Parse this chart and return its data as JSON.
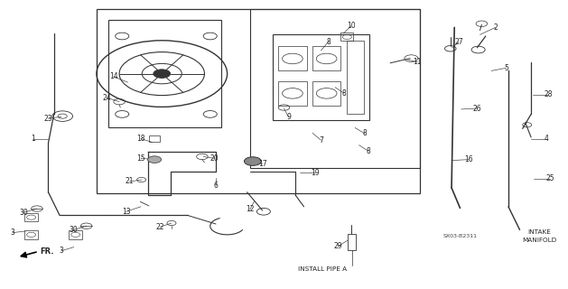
{
  "background_color": "#ffffff",
  "line_color": "#333333",
  "text_color": "#222222",
  "fig_width": 6.29,
  "fig_height": 3.2,
  "dpi": 100,
  "part_positions": {
    "1": {
      "comp": [
        0.085,
        0.52
      ],
      "lbl": [
        0.058,
        0.52
      ]
    },
    "2": {
      "comp": [
        0.845,
        0.88
      ],
      "lbl": [
        0.872,
        0.905
      ]
    },
    "3a": {
      "comp": [
        0.045,
        0.2
      ],
      "lbl": [
        0.022,
        0.195
      ]
    },
    "3b": {
      "comp": [
        0.13,
        0.145
      ],
      "lbl": [
        0.108,
        0.132
      ]
    },
    "4": {
      "comp": [
        0.935,
        0.52
      ],
      "lbl": [
        0.962,
        0.52
      ]
    },
    "5": {
      "comp": [
        0.865,
        0.755
      ],
      "lbl": [
        0.892,
        0.765
      ]
    },
    "6": {
      "comp": [
        0.38,
        0.385
      ],
      "lbl": [
        0.38,
        0.358
      ]
    },
    "7": {
      "comp": [
        0.55,
        0.54
      ],
      "lbl": [
        0.565,
        0.515
      ]
    },
    "8a": {
      "comp": [
        0.565,
        0.825
      ],
      "lbl": [
        0.578,
        0.855
      ]
    },
    "8b": {
      "comp": [
        0.59,
        0.698
      ],
      "lbl": [
        0.605,
        0.678
      ]
    },
    "8c": {
      "comp": [
        0.625,
        0.558
      ],
      "lbl": [
        0.642,
        0.538
      ]
    },
    "8d": {
      "comp": [
        0.632,
        0.498
      ],
      "lbl": [
        0.648,
        0.478
      ]
    },
    "9": {
      "comp": [
        0.5,
        0.625
      ],
      "lbl": [
        0.508,
        0.595
      ]
    },
    "10": {
      "comp": [
        0.605,
        0.885
      ],
      "lbl": [
        0.618,
        0.91
      ]
    },
    "11": {
      "comp": [
        0.715,
        0.795
      ],
      "lbl": [
        0.735,
        0.785
      ]
    },
    "12": {
      "comp": [
        0.448,
        0.305
      ],
      "lbl": [
        0.44,
        0.275
      ]
    },
    "13": {
      "comp": [
        0.248,
        0.285
      ],
      "lbl": [
        0.222,
        0.268
      ]
    },
    "14": {
      "comp": [
        0.225,
        0.715
      ],
      "lbl": [
        0.2,
        0.735
      ]
    },
    "15": {
      "comp": [
        0.272,
        0.448
      ],
      "lbl": [
        0.248,
        0.452
      ]
    },
    "16": {
      "comp": [
        0.795,
        0.445
      ],
      "lbl": [
        0.825,
        0.448
      ]
    },
    "17": {
      "comp": [
        0.447,
        0.442
      ],
      "lbl": [
        0.462,
        0.432
      ]
    },
    "18": {
      "comp": [
        0.268,
        0.508
      ],
      "lbl": [
        0.248,
        0.52
      ]
    },
    "19": {
      "comp": [
        0.528,
        0.402
      ],
      "lbl": [
        0.555,
        0.402
      ]
    },
    "20": {
      "comp": [
        0.358,
        0.458
      ],
      "lbl": [
        0.378,
        0.452
      ]
    },
    "21": {
      "comp": [
        0.25,
        0.378
      ],
      "lbl": [
        0.228,
        0.372
      ]
    },
    "22": {
      "comp": [
        0.302,
        0.228
      ],
      "lbl": [
        0.282,
        0.215
      ]
    },
    "23": {
      "comp": [
        0.108,
        0.596
      ],
      "lbl": [
        0.085,
        0.59
      ]
    },
    "24": {
      "comp": [
        0.21,
        0.648
      ],
      "lbl": [
        0.188,
        0.662
      ]
    },
    "25": {
      "comp": [
        0.94,
        0.382
      ],
      "lbl": [
        0.968,
        0.382
      ]
    },
    "26": {
      "comp": [
        0.812,
        0.622
      ],
      "lbl": [
        0.84,
        0.625
      ]
    },
    "27": {
      "comp": [
        0.796,
        0.835
      ],
      "lbl": [
        0.808,
        0.855
      ]
    },
    "28": {
      "comp": [
        0.938,
        0.672
      ],
      "lbl": [
        0.965,
        0.672
      ]
    },
    "29": {
      "comp": [
        0.612,
        0.168
      ],
      "lbl": [
        0.595,
        0.148
      ]
    },
    "30a": {
      "comp": [
        0.065,
        0.278
      ],
      "lbl": [
        0.042,
        0.265
      ]
    },
    "30b": {
      "comp": [
        0.152,
        0.218
      ],
      "lbl": [
        0.13,
        0.205
      ]
    }
  },
  "label_display": {
    "1": "1",
    "2": "2",
    "3a": "3",
    "3b": "3",
    "4": "4",
    "5": "5",
    "6": "6",
    "7": "7",
    "8a": "8",
    "8b": "8",
    "8c": "8",
    "8d": "8",
    "9": "9",
    "10": "10",
    "11": "11",
    "12": "12",
    "13": "13",
    "14": "14",
    "15": "15",
    "16": "16",
    "17": "17",
    "18": "18",
    "19": "19",
    "20": "20",
    "21": "21",
    "22": "22",
    "23": "23",
    "24": "24",
    "25": "25",
    "26": "26",
    "27": "27",
    "28": "28",
    "29": "29",
    "30a": "30",
    "30b": "30"
  }
}
